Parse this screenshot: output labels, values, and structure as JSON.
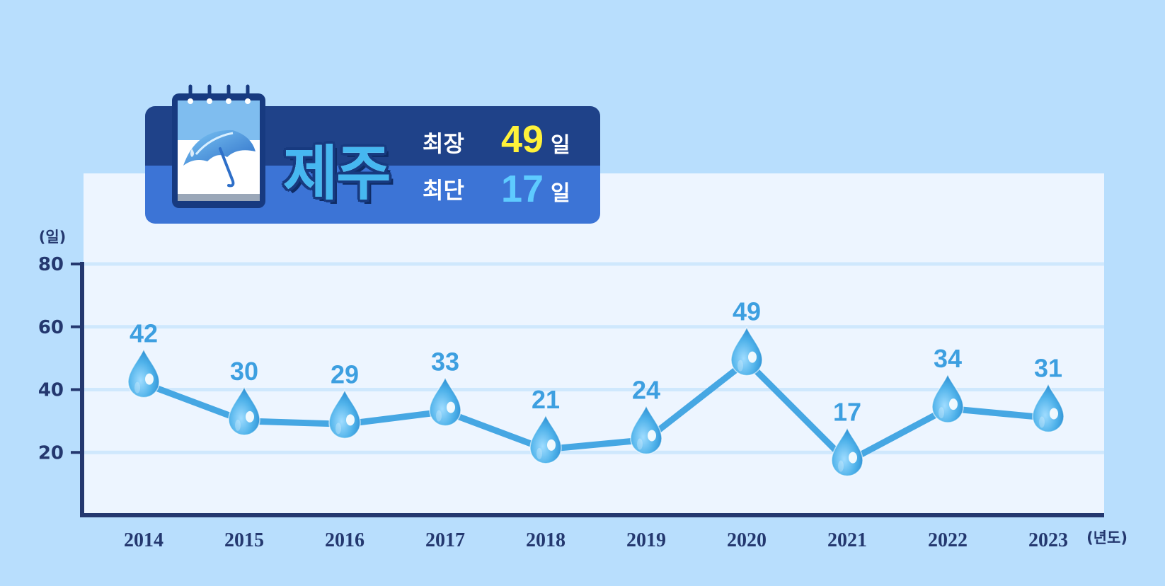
{
  "header": {
    "region": "제주",
    "max_label": "최장",
    "max_value": "49",
    "min_label": "최단",
    "min_value": "17",
    "unit": "일"
  },
  "colors": {
    "background": "#b8defd",
    "plot_background": "#edf5ff",
    "gridline": "#cfe8fd",
    "axis": "#24386f",
    "line": "#46a7e3",
    "data_label": "#3d9fe0",
    "tick_label": "#24386f",
    "header_top": "#1f4289",
    "header_bottom": "#3c74d6",
    "max_value": "#fff23a",
    "min_value": "#5ecbff"
  },
  "icons": {
    "header": "calendar-umbrella-icon",
    "marker": "water-drop-icon"
  },
  "chart_data": {
    "type": "line",
    "x": [
      "2014",
      "2015",
      "2016",
      "2017",
      "2018",
      "2019",
      "2020",
      "2021",
      "2022",
      "2023"
    ],
    "series": [
      {
        "values": [
          42,
          30,
          29,
          33,
          21,
          24,
          49,
          17,
          34,
          31
        ]
      }
    ],
    "ylabel": "(일)",
    "xlabel": "(년도)",
    "yticks": [
      20,
      40,
      60,
      80
    ],
    "ylim": [
      0,
      80
    ],
    "grid": true,
    "legend": "none",
    "marker": "water-drop"
  }
}
